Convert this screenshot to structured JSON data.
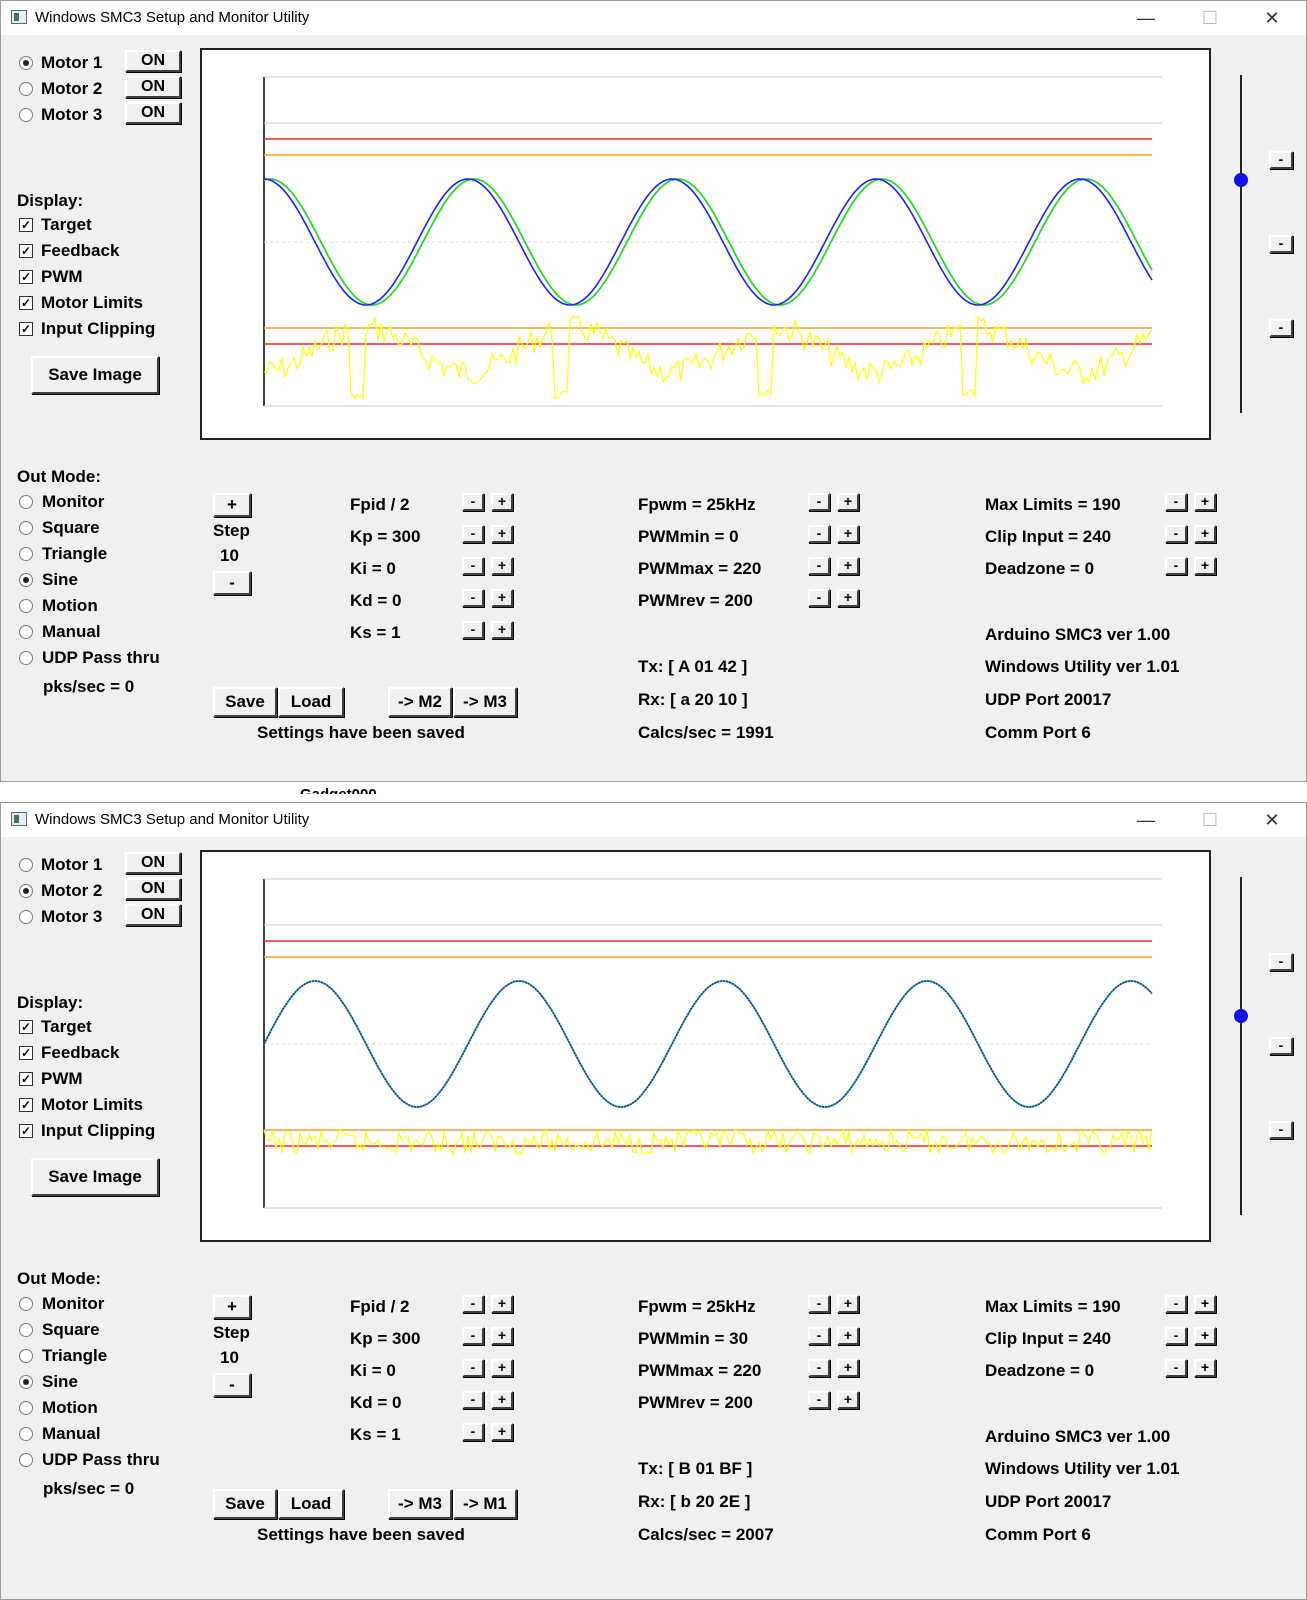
{
  "windows": [
    {
      "title": "Windows SMC3 Setup and Monitor Utility",
      "window_controls": {
        "minimize": "—",
        "maximize": "☐",
        "close": "✕"
      },
      "motors": [
        {
          "label": "Motor 1",
          "on_label": "ON",
          "selected": true
        },
        {
          "label": "Motor 2",
          "on_label": "ON",
          "selected": false
        },
        {
          "label": "Motor 3",
          "on_label": "ON",
          "selected": false
        }
      ],
      "display": {
        "heading": "Display:",
        "options": [
          {
            "label": "Target",
            "checked": true
          },
          {
            "label": "Feedback",
            "checked": true
          },
          {
            "label": "PWM",
            "checked": true
          },
          {
            "label": "Motor Limits",
            "checked": true
          },
          {
            "label": "Input Clipping",
            "checked": true
          }
        ]
      },
      "save_image_label": "Save Image",
      "out_mode": {
        "heading": "Out Mode:",
        "options": [
          {
            "label": "Monitor",
            "selected": false
          },
          {
            "label": "Square",
            "selected": false
          },
          {
            "label": "Triangle",
            "selected": false
          },
          {
            "label": "Sine",
            "selected": true
          },
          {
            "label": "Motion",
            "selected": false
          },
          {
            "label": "Manual",
            "selected": false
          },
          {
            "label": "UDP Pass thru",
            "selected": false
          }
        ],
        "pks_label": "pks/sec = 0"
      },
      "step": {
        "plus": "+",
        "label": "Step",
        "value": "10",
        "minus": "-"
      },
      "pid_params": [
        "Fpid / 2",
        "Kp = 300",
        "Ki = 0",
        "Kd = 0",
        "Ks = 1"
      ],
      "pwm_params": [
        "Fpwm = 25kHz",
        "PWMmin = 0",
        "PWMmax = 220",
        "PWMrev = 200"
      ],
      "limit_params": [
        "Max Limits = 190",
        "Clip Input = 240",
        "Deadzone = 0"
      ],
      "buttons": {
        "save": "Save",
        "load": "Load",
        "copy_a": "-> M2",
        "copy_b": "-> M3"
      },
      "status": "Settings have been saved",
      "tx": "Tx: [ A 01 42 ]",
      "rx": "Rx: [ a 20 10 ]",
      "calcs": "Calcs/sec = 1991",
      "info": [
        "Arduino SMC3 ver 1.00",
        "Windows Utility ver 1.01",
        "UDP Port 20017",
        "Comm Port 6"
      ],
      "spin": {
        "minus": "-",
        "plus": "+"
      },
      "zoom_button": "-",
      "slider_level": 0.69,
      "colors": {
        "target": "#1e1eff",
        "feedback": "#22dd22",
        "pwm": "#ffff00",
        "limit": "#ff2020",
        "clip": "#ff9922"
      }
    },
    {
      "title": "Windows SMC3 Setup and Monitor Utility",
      "window_controls": {
        "minimize": "—",
        "maximize": "☐",
        "close": "✕"
      },
      "motors": [
        {
          "label": "Motor 1",
          "on_label": "ON",
          "selected": false
        },
        {
          "label": "Motor 2",
          "on_label": "ON",
          "selected": true
        },
        {
          "label": "Motor 3",
          "on_label": "ON",
          "selected": false
        }
      ],
      "display": {
        "heading": "Display:",
        "options": [
          {
            "label": "Target",
            "checked": true
          },
          {
            "label": "Feedback",
            "checked": true
          },
          {
            "label": "PWM",
            "checked": true
          },
          {
            "label": "Motor Limits",
            "checked": true
          },
          {
            "label": "Input Clipping",
            "checked": true
          }
        ]
      },
      "save_image_label": "Save Image",
      "out_mode": {
        "heading": "Out Mode:",
        "options": [
          {
            "label": "Monitor",
            "selected": false
          },
          {
            "label": "Square",
            "selected": false
          },
          {
            "label": "Triangle",
            "selected": false
          },
          {
            "label": "Sine",
            "selected": true
          },
          {
            "label": "Motion",
            "selected": false
          },
          {
            "label": "Manual",
            "selected": false
          },
          {
            "label": "UDP Pass thru",
            "selected": false
          }
        ],
        "pks_label": "pks/sec = 0"
      },
      "step": {
        "plus": "+",
        "label": "Step",
        "value": "10",
        "minus": "-"
      },
      "pid_params": [
        "Fpid / 2",
        "Kp = 300",
        "Ki = 0",
        "Kd = 0",
        "Ks = 1"
      ],
      "pwm_params": [
        "Fpwm = 25kHz",
        "PWMmin = 30",
        "PWMmax = 220",
        "PWMrev = 200"
      ],
      "limit_params": [
        "Max Limits = 190",
        "Clip Input = 240",
        "Deadzone = 0"
      ],
      "buttons": {
        "save": "Save",
        "load": "Load",
        "copy_a": "-> M3",
        "copy_b": "-> M1"
      },
      "status": "Settings have been saved",
      "tx": "Tx: [ B 01 BF ]",
      "rx": "Rx: [ b 20 2E ]",
      "calcs": "Calcs/sec = 2007",
      "info": [
        "Arduino SMC3 ver 1.00",
        "Windows Utility ver 1.01",
        "UDP Port 20017",
        "Comm Port 6"
      ],
      "spin": {
        "minus": "-",
        "plus": "+"
      },
      "zoom_button": "-",
      "slider_level": 0.59,
      "colors": {
        "target": "#1e1eff",
        "feedback": "#22dd22",
        "pwm": "#ffff00",
        "limit": "#ff2020",
        "clip": "#ff9922"
      }
    }
  ],
  "background_fragment": "Gadget000"
}
